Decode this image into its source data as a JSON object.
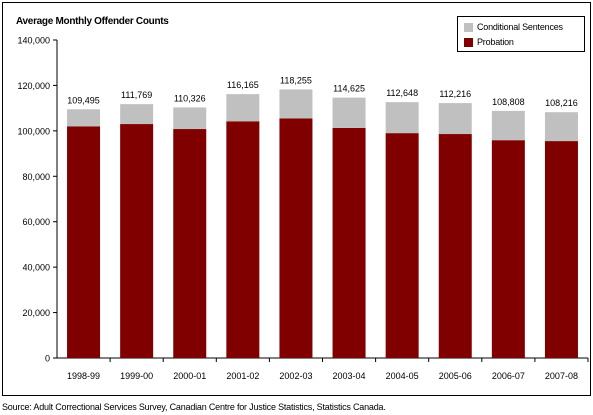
{
  "chart_title": "Average Monthly Offender Counts",
  "source_note": "Source:  Adult Correctional Services Survey, Canadian Centre for Justice Statistics, Statistics Canada.",
  "colors": {
    "probation": "#800000",
    "conditional": "#c0c0c0",
    "axis": "#000000",
    "background": "#ffffff"
  },
  "chart_data": {
    "type": "bar",
    "stacked": true,
    "title": "Average Monthly Offender Counts",
    "xlabel": "",
    "ylabel": "",
    "ylim": [
      0,
      140000
    ],
    "yticks": [
      0,
      20000,
      40000,
      60000,
      80000,
      100000,
      120000,
      140000
    ],
    "ytick_labels": [
      "0",
      "20,000",
      "40,000",
      "60,000",
      "80,000",
      "100,000",
      "120,000",
      "140,000"
    ],
    "grid": false,
    "legend_position": "top-right",
    "categories": [
      "1998-99",
      "1999-00",
      "2000-01",
      "2001-02",
      "2002-03",
      "2003-04",
      "2004-05",
      "2005-06",
      "2006-07",
      "2007-08"
    ],
    "series": [
      {
        "name": "Probation",
        "color": "#800000",
        "values": [
          102000,
          103000,
          100800,
          104200,
          105500,
          101300,
          99000,
          98600,
          95900,
          95500
        ]
      },
      {
        "name": "Conditional Sentences",
        "color": "#c0c0c0",
        "values": [
          7495,
          8769,
          9526,
          11965,
          12755,
          13325,
          13648,
          13616,
          12908,
          12716
        ]
      }
    ],
    "totals": [
      109495,
      111769,
      110326,
      116165,
      118255,
      114625,
      112648,
      112216,
      108808,
      108216
    ],
    "total_labels": [
      "109,495",
      "111,769",
      "110,326",
      "116,165",
      "118,255",
      "114,625",
      "112,648",
      "112,216",
      "108,808",
      "108,216"
    ]
  }
}
